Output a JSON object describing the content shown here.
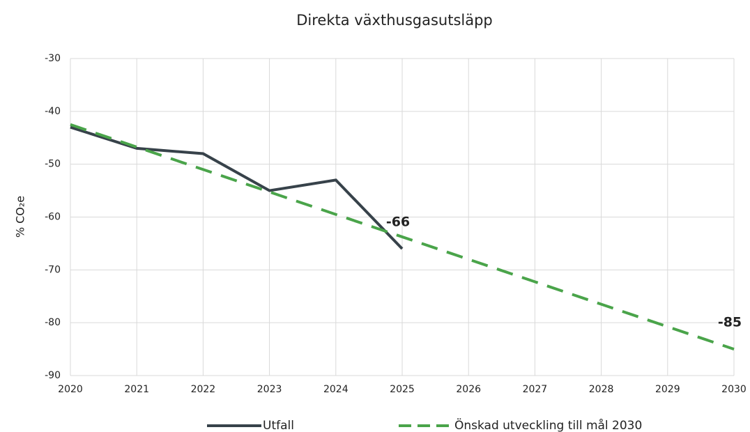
{
  "chart_data": {
    "type": "line",
    "title": "Direkta växthusgasutsläpp",
    "ylabel": "% CO₂e",
    "x": [
      2020,
      2021,
      2022,
      2023,
      2024,
      2025,
      2026,
      2027,
      2028,
      2029,
      2030
    ],
    "xlim": [
      2020,
      2030
    ],
    "xticks": [
      2020,
      2021,
      2022,
      2023,
      2024,
      2025,
      2026,
      2027,
      2028,
      2029,
      2030
    ],
    "ylim": [
      -90,
      -30
    ],
    "yticks": [
      -30,
      -40,
      -50,
      -60,
      -70,
      -80,
      -90
    ],
    "grid": true,
    "legend": "bottom",
    "series": [
      {
        "name": "Utfall",
        "color": "#37424a",
        "dash": "solid",
        "values": [
          -43,
          -47,
          -48,
          -55,
          -53,
          -66,
          null,
          null,
          null,
          null,
          null
        ],
        "value_labels": [
          null,
          null,
          null,
          null,
          null,
          "-66",
          null,
          null,
          null,
          null,
          null
        ]
      },
      {
        "name": "Önskad utveckling till mål 2030",
        "color": "#4aa44a",
        "dash": "dashed",
        "values": [
          -42.5,
          -46.75,
          -51,
          -55.25,
          -59.5,
          -63.75,
          -68,
          -72.25,
          -76.5,
          -80.75,
          -85
        ],
        "value_labels": [
          null,
          null,
          null,
          null,
          null,
          null,
          null,
          null,
          null,
          null,
          "-85"
        ]
      }
    ]
  }
}
